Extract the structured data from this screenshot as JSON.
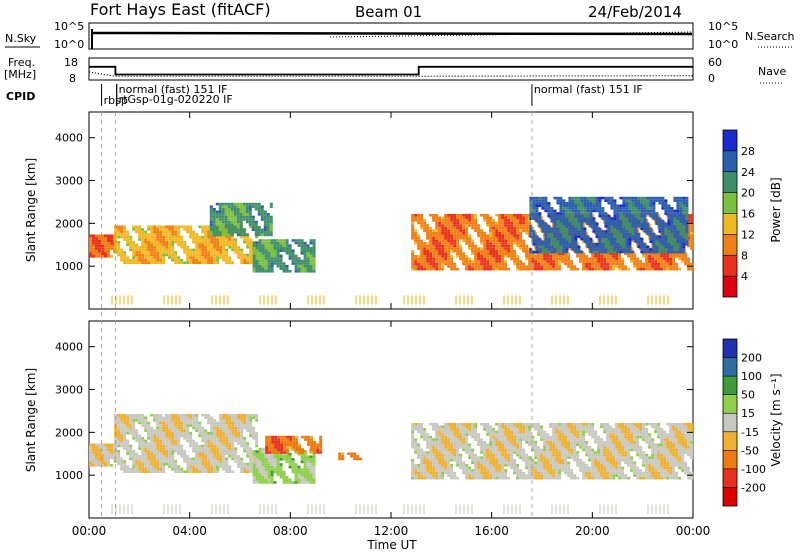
{
  "header": {
    "station": "Fort Hays East (fitACF)",
    "beam": "Beam 01",
    "date": "24/Feb/2014"
  },
  "top_panels": {
    "nsky_label": "N.Sky",
    "nsearch_label": "N.Search",
    "nsky_ticks": [
      "10^5",
      "10^0"
    ],
    "nsearch_ticks": [
      "10^5",
      "10^0"
    ],
    "freq_label_1": "Freq.",
    "freq_label_2": "[MHz]",
    "freq_ticks": [
      "18",
      "8"
    ],
    "nave_label": "Nave",
    "nave_ticks": [
      "60",
      "0"
    ],
    "cpid_label": "CPID",
    "cpid_entries": [
      {
        "hour": 0.5,
        "label": "rbsp"
      },
      {
        "hour": 1.1,
        "label": "normal (fast) 151 IF"
      },
      {
        "hour": 1.1,
        "label": "rtGsp-01g-020220 IF"
      },
      {
        "hour": 17.6,
        "label": "normal (fast) 151 IF"
      }
    ],
    "freq_step": [
      {
        "hour": 0,
        "mhz": 14
      },
      {
        "hour": 1.05,
        "mhz": 10.5
      },
      {
        "hour": 13.1,
        "mhz": 14
      }
    ],
    "nave_series": [
      {
        "hour": 0,
        "value": 22
      },
      {
        "hour": 1.05,
        "value": 10
      },
      {
        "hour": 13.1,
        "value": 10
      },
      {
        "hour": 24,
        "value": 12
      }
    ]
  },
  "chart_data": [
    {
      "type": "heatmap",
      "name": "power",
      "xlabel": "Time UT",
      "ylabel": "Slant Range [km]",
      "x_ticks": [
        "00:00",
        "04:00",
        "08:00",
        "12:00",
        "16:00",
        "20:00",
        "00:00"
      ],
      "xlim": [
        0,
        24
      ],
      "ylim": [
        0,
        4600
      ],
      "y_ticks": [
        1000,
        2000,
        3000,
        4000
      ],
      "colorbar_label": "Power [dB]",
      "colorbar_ticks": [
        "28",
        "24",
        "20",
        "16",
        "12",
        "8",
        "4"
      ],
      "colors": [
        "#1a2acc",
        "#2d5fb0",
        "#3f8f6a",
        "#7bc03e",
        "#f2b824",
        "#f07f14",
        "#e8321e",
        "#dd0010"
      ],
      "regions": [
        {
          "t0": 0.0,
          "t1": 1.0,
          "r0": 1200,
          "r1": 1700,
          "level": 5
        },
        {
          "t0": 1.0,
          "t1": 6.7,
          "r0": 1050,
          "r1": 1900,
          "level": 4
        },
        {
          "t0": 4.8,
          "t1": 7.2,
          "r0": 1700,
          "r1": 2450,
          "level": 2
        },
        {
          "t0": 6.5,
          "t1": 9.0,
          "r0": 850,
          "r1": 1600,
          "level": 2
        },
        {
          "t0": 12.8,
          "t1": 24.0,
          "r0": 900,
          "r1": 2200,
          "level": 5
        },
        {
          "t0": 17.5,
          "t1": 23.8,
          "r0": 1300,
          "r1": 2600,
          "level": 1
        }
      ]
    },
    {
      "type": "heatmap",
      "name": "velocity",
      "xlabel": "Time UT",
      "ylabel": "Slant Range [km]",
      "x_ticks": [
        "00:00",
        "04:00",
        "08:00",
        "12:00",
        "16:00",
        "20:00",
        "00:00"
      ],
      "xlim": [
        0,
        24
      ],
      "ylim": [
        0,
        4600
      ],
      "y_ticks": [
        1000,
        2000,
        3000,
        4000
      ],
      "colorbar_label": "Velocity [m s⁻¹]",
      "colorbar_ticks": [
        "200",
        "100",
        "50",
        "15",
        "-15",
        "-50",
        "-100",
        "-200"
      ],
      "colors": [
        "#2030b0",
        "#2f6fa0",
        "#3f9a3a",
        "#8fd04a",
        "#c8c8c0",
        "#f0b030",
        "#ee7a10",
        "#e83020",
        "#dd0000"
      ],
      "regions": [
        {
          "t0": 0.0,
          "t1": 1.0,
          "r0": 1200,
          "r1": 1700,
          "level": 4
        },
        {
          "t0": 1.0,
          "t1": 6.7,
          "r0": 1050,
          "r1": 2400,
          "level": 4
        },
        {
          "t0": 6.5,
          "t1": 8.9,
          "r0": 800,
          "r1": 1600,
          "level": 3
        },
        {
          "t0": 7.0,
          "t1": 9.2,
          "r0": 1500,
          "r1": 1900,
          "level": 6
        },
        {
          "t0": 9.9,
          "t1": 10.8,
          "r0": 1350,
          "r1": 1500,
          "level": 6
        },
        {
          "t0": 12.8,
          "t1": 24.0,
          "r0": 900,
          "r1": 2200,
          "level": 4
        }
      ]
    }
  ]
}
